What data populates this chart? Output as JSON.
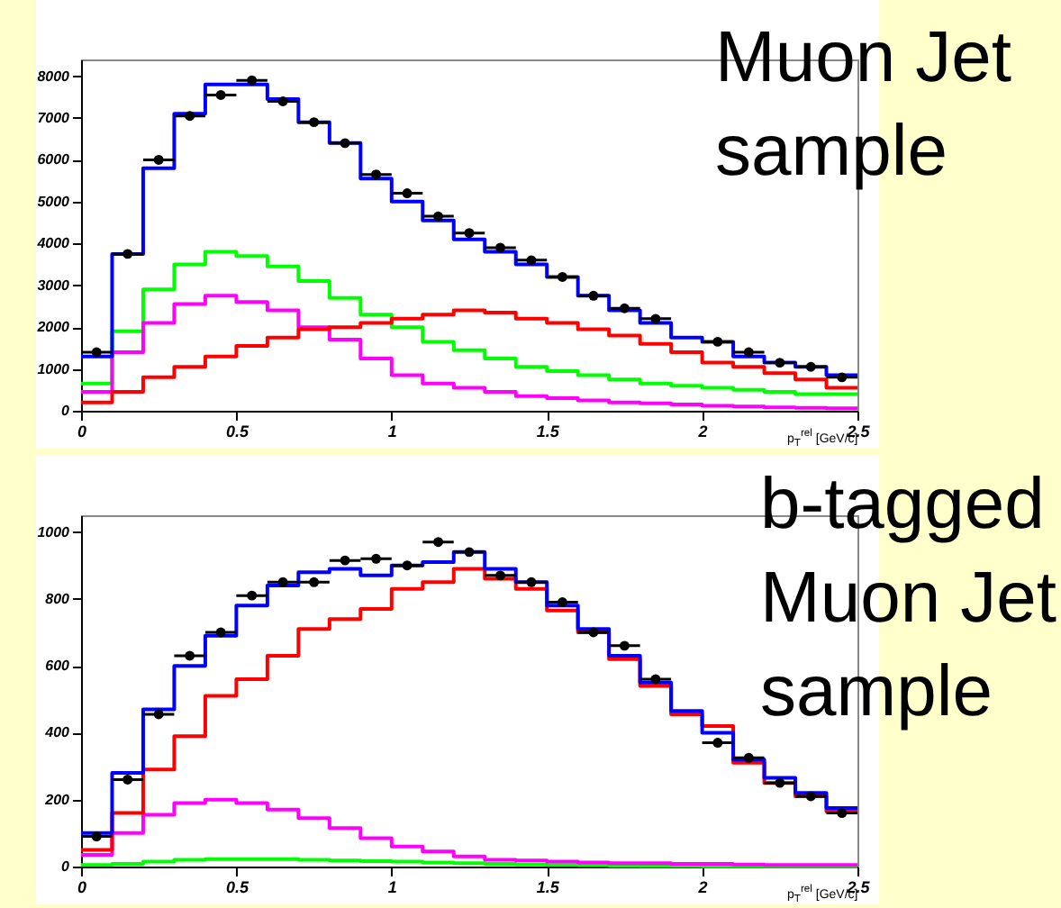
{
  "chart_data": [
    {
      "type": "histogram",
      "annotations": [
        "Muon Jet sample"
      ],
      "xlabel": "p$_{T}$$^{rel}$ [GeV/c]",
      "bins": [
        0,
        0.1,
        0.2,
        0.3,
        0.4,
        0.5,
        0.6,
        0.7,
        0.8,
        0.9,
        1,
        1.1,
        1.2,
        1.3,
        1.4,
        1.5,
        1.6,
        1.7,
        1.8,
        1.9,
        2,
        2.1,
        2.2,
        2.3,
        2.4,
        2.5
      ],
      "xlim": [
        0,
        2.5
      ],
      "xticks": [
        0,
        0.5,
        1,
        1.5,
        2,
        2.5
      ],
      "ylim": [
        0,
        8400
      ],
      "yticks": [
        0,
        1000,
        2000,
        3000,
        4000,
        5000,
        6000,
        7000,
        8000
      ],
      "series": [
        {
          "color": "#00ff00",
          "values": [
            650,
            1900,
            2900,
            3500,
            3800,
            3700,
            3450,
            3100,
            2700,
            2300,
            2000,
            1650,
            1450,
            1250,
            1050,
            950,
            850,
            750,
            650,
            600,
            550,
            500,
            450,
            400,
            400
          ]
        },
        {
          "color": "#ff00ff",
          "values": [
            450,
            1400,
            2100,
            2550,
            2750,
            2600,
            2400,
            2000,
            1700,
            1250,
            850,
            650,
            550,
            450,
            350,
            300,
            250,
            200,
            180,
            150,
            120,
            100,
            80,
            70,
            60
          ]
        },
        {
          "color": "#ff0000",
          "values": [
            200,
            450,
            800,
            1050,
            1300,
            1550,
            1750,
            1950,
            2000,
            2100,
            2200,
            2300,
            2400,
            2350,
            2200,
            2100,
            1950,
            1800,
            1600,
            1400,
            1150,
            1050,
            900,
            750,
            550
          ]
        },
        {
          "color": "#0000ff",
          "values": [
            1300,
            3750,
            5800,
            7100,
            7800,
            7800,
            7450,
            6900,
            6400,
            5550,
            5000,
            4550,
            4100,
            3800,
            3500,
            3200,
            2750,
            2400,
            2100,
            1750,
            1650,
            1300,
            1150,
            1050,
            850
          ]
        },
        {
          "type": "scatter",
          "color": "#000000",
          "x": [
            0.05,
            0.15,
            0.25,
            0.35,
            0.45,
            0.55,
            0.65,
            0.75,
            0.85,
            0.95,
            1.05,
            1.15,
            1.25,
            1.35,
            1.45,
            1.55,
            1.65,
            1.75,
            1.85,
            1.95,
            2.05,
            2.15,
            2.25,
            2.35,
            2.45
          ],
          "values": [
            1400,
            3750,
            6000,
            7050,
            7550,
            7900,
            7400,
            6900,
            6400,
            5650,
            5200,
            4650,
            4250,
            3900,
            3600,
            3200,
            2750,
            2450,
            2200,
            null,
            1650,
            1400,
            1150,
            1050,
            800
          ],
          "xerrors": [
            0.05,
            0.05,
            0.05,
            0.05,
            0.05,
            0.05,
            0.05,
            0.05,
            0.05,
            0.05,
            0.05,
            0.05,
            0.05,
            0.05,
            0.05,
            0.05,
            0.05,
            0.05,
            0.05,
            null,
            0.05,
            0.05,
            0.05,
            0.05,
            0.05
          ]
        }
      ]
    },
    {
      "type": "histogram",
      "annotations": [
        "b-tagged Muon Jet sample"
      ],
      "xlabel": "p$_{T}$$^{rel}$ [GeV/c]",
      "bins": [
        0,
        0.1,
        0.2,
        0.3,
        0.4,
        0.5,
        0.6,
        0.7,
        0.8,
        0.9,
        1,
        1.1,
        1.2,
        1.3,
        1.4,
        1.5,
        1.6,
        1.7,
        1.8,
        1.9,
        2,
        2.1,
        2.2,
        2.3,
        2.4,
        2.5
      ],
      "xlim": [
        0,
        2.5
      ],
      "xticks": [
        0,
        0.5,
        1,
        1.5,
        2,
        2.5
      ],
      "ylim": [
        0,
        1050
      ],
      "yticks": [
        0,
        200,
        400,
        600,
        800,
        1000
      ],
      "series": [
        {
          "color": "#00ff00",
          "values": [
            5,
            8,
            15,
            20,
            22,
            22,
            22,
            20,
            18,
            16,
            15,
            12,
            10,
            8,
            6,
            5,
            4,
            3,
            2,
            2,
            1,
            1,
            1,
            1,
            1
          ]
        },
        {
          "color": "#ff00ff",
          "values": [
            35,
            100,
            155,
            190,
            200,
            190,
            170,
            145,
            115,
            85,
            60,
            45,
            30,
            20,
            18,
            15,
            12,
            10,
            10,
            8,
            8,
            6,
            5,
            5,
            5
          ]
        },
        {
          "color": "#ff0000",
          "values": [
            50,
            160,
            290,
            390,
            510,
            560,
            630,
            710,
            740,
            770,
            830,
            850,
            890,
            860,
            830,
            765,
            700,
            620,
            540,
            455,
            420,
            310,
            250,
            210,
            165
          ]
        },
        {
          "color": "#0000ff",
          "values": [
            100,
            280,
            470,
            600,
            690,
            780,
            840,
            880,
            890,
            870,
            900,
            910,
            940,
            890,
            850,
            780,
            710,
            630,
            550,
            465,
            400,
            320,
            265,
            220,
            175
          ]
        },
        {
          "type": "scatter",
          "color": "#000000",
          "x": [
            0.05,
            0.15,
            0.25,
            0.35,
            0.45,
            0.55,
            0.65,
            0.75,
            0.85,
            0.95,
            1.05,
            1.15,
            1.25,
            1.35,
            1.45,
            1.55,
            1.65,
            1.75,
            1.85,
            1.95,
            2.05,
            2.15,
            2.25,
            2.35,
            2.45
          ],
          "values": [
            90,
            260,
            455,
            630,
            700,
            810,
            850,
            850,
            915,
            920,
            900,
            970,
            940,
            870,
            850,
            790,
            700,
            660,
            560,
            null,
            370,
            325,
            250,
            210,
            160
          ],
          "xerrors": [
            0.05,
            0.05,
            0.05,
            0.05,
            0.05,
            0.05,
            0.05,
            0.05,
            0.05,
            0.05,
            0.05,
            0.05,
            0.05,
            0.05,
            0.05,
            0.05,
            0.05,
            0.05,
            0.05,
            null,
            0.05,
            0.05,
            0.05,
            0.05,
            0.05
          ]
        }
      ]
    }
  ]
}
